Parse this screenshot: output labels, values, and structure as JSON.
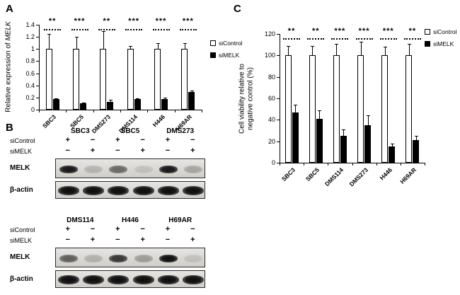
{
  "panels": {
    "a": {
      "label": "A"
    },
    "b": {
      "label": "B"
    },
    "c": {
      "label": "C"
    }
  },
  "chart_data": [
    {
      "id": "A",
      "type": "bar",
      "ylabel": "Relative expression of MELK",
      "ylabel_prefix": "Relative expression of ",
      "ylabel_gene": "MELK",
      "categories": [
        "SBC3",
        "SBC5",
        "DMS273",
        "DMS114",
        "H446",
        "H69AR"
      ],
      "series": [
        {
          "name": "siControl",
          "color": "#ffffff",
          "values": [
            1.0,
            1.0,
            1.0,
            1.0,
            1.0,
            1.0
          ],
          "errors": [
            0.25,
            0.2,
            0.3,
            0.05,
            0.1,
            0.1
          ]
        },
        {
          "name": "siMELK",
          "color": "#000000",
          "values": [
            0.17,
            0.1,
            0.13,
            0.17,
            0.18,
            0.29
          ],
          "errors": [
            0.02,
            0.02,
            0.03,
            0.02,
            0.02,
            0.03
          ]
        }
      ],
      "significance": [
        "**",
        "***",
        "**",
        "***",
        "***",
        "***"
      ],
      "ylim": [
        0,
        1.4
      ],
      "yticks": [
        0,
        0.2,
        0.4,
        0.6,
        0.8,
        1,
        1.2,
        1.4
      ],
      "grid": false,
      "legend_position": "right"
    },
    {
      "id": "C",
      "type": "bar",
      "ylabel": "Cell viability relative to negative control (%)",
      "categories": [
        "SBC3",
        "SBC5",
        "DMS114",
        "DMS273",
        "H446",
        "H69AR"
      ],
      "series": [
        {
          "name": "siControl",
          "color": "#ffffff",
          "values": [
            100,
            100,
            100,
            100,
            100,
            100
          ],
          "errors": [
            9,
            9,
            11,
            13,
            8,
            11
          ]
        },
        {
          "name": "siMELK",
          "color": "#000000",
          "values": [
            47,
            41,
            25,
            35,
            15,
            21
          ],
          "errors": [
            7,
            8,
            6,
            9,
            3,
            4
          ]
        }
      ],
      "significance": [
        "**",
        "**",
        "***",
        "***",
        "***",
        "**"
      ],
      "ylim": [
        0,
        120
      ],
      "yticks": [
        0,
        20,
        40,
        60,
        80,
        100,
        120
      ],
      "grid": false,
      "legend_position": "top-right"
    }
  ],
  "blots": {
    "groups": [
      {
        "cell_lines": [
          "SBC3",
          "SBC5",
          "DMS273"
        ],
        "condition_rows": [
          {
            "label": "siControl",
            "signs": [
              "+",
              "−",
              "+",
              "−",
              "+",
              "−"
            ]
          },
          {
            "label": "siMELK",
            "signs": [
              "−",
              "+",
              "−",
              "+",
              "−",
              "+"
            ]
          }
        ],
        "blot_rows": [
          {
            "label": "MELK",
            "band_intensities": [
              0.95,
              0.18,
              0.55,
              0.12,
              0.95,
              0.25
            ]
          },
          {
            "label": "β-actin",
            "band_intensities": [
              1,
              1,
              1,
              1,
              1,
              1
            ]
          }
        ]
      },
      {
        "cell_lines": [
          "DMS114",
          "H446",
          "H69AR"
        ],
        "condition_rows": [
          {
            "label": "siControl",
            "signs": [
              "+",
              "−",
              "+",
              "−",
              "+",
              "−"
            ]
          },
          {
            "label": "siMELK",
            "signs": [
              "−",
              "+",
              "−",
              "+",
              "−",
              "+"
            ]
          }
        ],
        "blot_rows": [
          {
            "label": "MELK",
            "band_intensities": [
              0.6,
              0.2,
              0.8,
              0.3,
              1.0,
              0.12
            ]
          },
          {
            "label": "β-actin",
            "band_intensities": [
              1,
              1,
              1,
              1,
              1,
              1
            ]
          }
        ]
      }
    ]
  }
}
